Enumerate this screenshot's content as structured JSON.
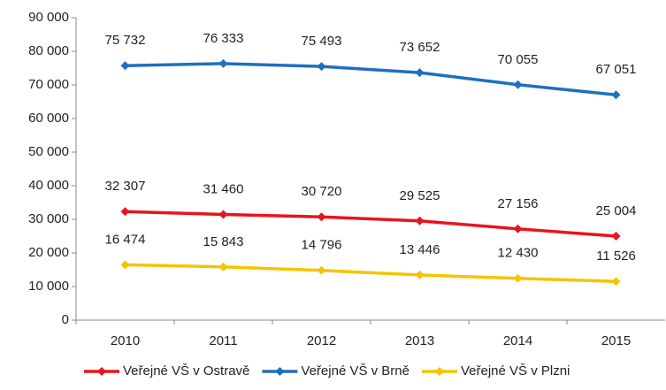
{
  "chart_data": {
    "type": "line",
    "categories": [
      "2010",
      "2011",
      "2012",
      "2013",
      "2014",
      "2015"
    ],
    "series": [
      {
        "name": "Veřejné VŠ v Ostravě",
        "color": "#e8141b",
        "values": [
          32307,
          31460,
          30720,
          29525,
          27156,
          25004
        ],
        "value_labels": [
          "32 307",
          "31 460",
          "30 720",
          "29 525",
          "27 156",
          "25 004"
        ]
      },
      {
        "name": "Veřejné VŠ v Brně",
        "color": "#1f6fc0",
        "values": [
          75732,
          76333,
          75493,
          73652,
          70055,
          67051
        ],
        "value_labels": [
          "75 732",
          "76 333",
          "75 493",
          "73 652",
          "70 055",
          "67 051"
        ]
      },
      {
        "name": "Veřejné VŠ v Plzni",
        "color": "#f5c400",
        "values": [
          16474,
          15843,
          14796,
          13446,
          12430,
          11526
        ],
        "value_labels": [
          "16 474",
          "15 843",
          "14 796",
          "13 446",
          "12 430",
          "11 526"
        ]
      }
    ],
    "ylim": [
      0,
      90000
    ],
    "yticks": [
      0,
      {
        "value": 10000,
        "label": "10 000"
      },
      {
        "value": 20000,
        "label": "20 000"
      },
      {
        "value": 30000,
        "label": "30 000"
      },
      {
        "value": 40000,
        "label": "40 000"
      },
      {
        "value": 50000,
        "label": "50 000"
      },
      {
        "value": 60000,
        "label": "60 000"
      },
      {
        "value": 70000,
        "label": "70 000"
      },
      {
        "value": 80000,
        "label": "80 000"
      },
      {
        "value": 90000,
        "label": "90 000"
      }
    ],
    "grid": false,
    "legend": "bottom"
  }
}
